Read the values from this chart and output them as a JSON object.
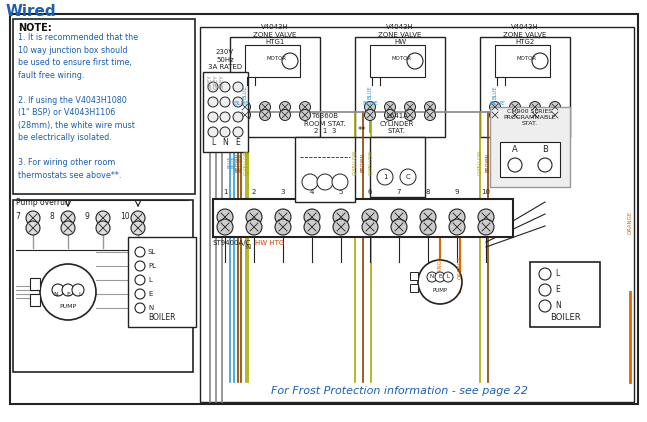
{
  "title": "Wired",
  "bg_color": "#ffffff",
  "border_color": "#222222",
  "note_title": "NOTE:",
  "note_lines": [
    "1. It is recommended that the",
    "10 way junction box should",
    "be used to ensure first time,",
    "fault free wiring.",
    "",
    "2. If using the V4043H1080",
    "(1\" BSP) or V4043H1106",
    "(28mm), the white wire must",
    "be electrically isolated.",
    "",
    "3. For wiring other room",
    "thermostats see above**."
  ],
  "pump_overrun_label": "Pump overrun",
  "zone_valve_labels": [
    "V4043H\nZONE VALVE\nHTG1",
    "V4043H\nZONE VALVE\nHW",
    "V4043H\nZONE VALVE\nHTG2"
  ],
  "power_label": "230V\n50Hz\n3A RATED",
  "room_stat_label": "T6360B\nROOM STAT.\n2  1  3",
  "cylinder_stat_label": "L641A\nCYLINDER\nSTAT.",
  "cm_series_label": "CM900 SERIES\nPROGRAMMABLE\nSTAT.",
  "st_label": "ST9400A/C",
  "hw_htg_label": "HW HTG",
  "boiler_label": "BOILER",
  "pump_label": "PUMP",
  "frost_text": "For Frost Protection information - see page 22",
  "title_color": "#1a5fb4",
  "note_title_color": "#111111",
  "note_text_color": "#1a5fb4",
  "frost_color": "#1a5fb4",
  "grey": "#888888",
  "blue": "#3399dd",
  "brown": "#884400",
  "gyellow": "#aaaa00",
  "orange": "#dd6600",
  "dark": "#222222",
  "light_grey": "#cccccc",
  "mid_grey": "#999999"
}
